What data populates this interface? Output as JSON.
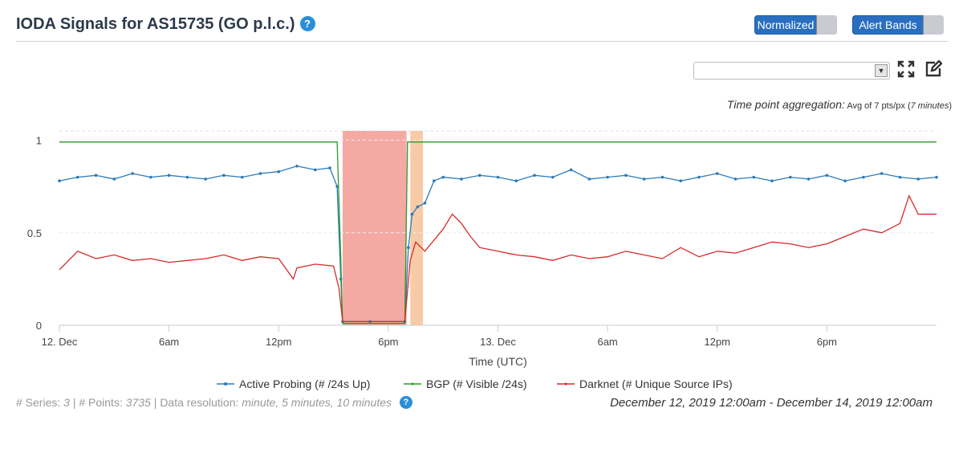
{
  "header": {
    "title": "IODA Signals for AS15735 (GO p.l.c.)",
    "help_icon": "?"
  },
  "controls": {
    "normalized_label": "Normalized",
    "alert_bands_label": "Alert Bands",
    "select_value": "",
    "aggregation_label": "Time point aggregation:",
    "aggregation_value": "Avg of 7 pts/px (",
    "aggregation_minutes": "7 minutes",
    "aggregation_close": ")"
  },
  "footer": {
    "series_label": "# Series:",
    "series_count": "3",
    "points_label": "# Points:",
    "points_count": "3735",
    "resolution_label": "Data resolution:",
    "resolution_value": "minute, 5 minutes, 10 minutes",
    "date_range": "December 12, 2019 12:00am - December 14, 2019 12:00am"
  },
  "chart_data": {
    "type": "line",
    "xlabel": "Time (UTC)",
    "ylabel": "",
    "x_range_hours": [
      0,
      48
    ],
    "ylim": [
      0,
      1.05
    ],
    "x_ticks": [
      {
        "h": 0,
        "label": "12. Dec"
      },
      {
        "h": 6,
        "label": "6am"
      },
      {
        "h": 12,
        "label": "12pm"
      },
      {
        "h": 18,
        "label": "6pm"
      },
      {
        "h": 24,
        "label": "13. Dec"
      },
      {
        "h": 30,
        "label": "6am"
      },
      {
        "h": 36,
        "label": "12pm"
      },
      {
        "h": 42,
        "label": "6pm"
      }
    ],
    "y_ticks": [
      {
        "v": 0,
        "label": "0"
      },
      {
        "v": 0.5,
        "label": "0.5"
      },
      {
        "v": 1,
        "label": "1"
      }
    ],
    "alert_bands": [
      {
        "start": 15.5,
        "end": 19.0,
        "color": "#f4aaa3"
      },
      {
        "start": 19.2,
        "end": 19.9,
        "color": "#f8cba8"
      }
    ],
    "series": [
      {
        "name": "Active Probing (# /24s Up)",
        "color": "#2b7bb9",
        "marker": true,
        "points": [
          [
            0,
            0.78
          ],
          [
            1,
            0.8
          ],
          [
            2,
            0.81
          ],
          [
            3,
            0.79
          ],
          [
            4,
            0.82
          ],
          [
            5,
            0.8
          ],
          [
            6,
            0.81
          ],
          [
            7,
            0.8
          ],
          [
            8,
            0.79
          ],
          [
            9,
            0.81
          ],
          [
            10,
            0.8
          ],
          [
            11,
            0.82
          ],
          [
            12,
            0.83
          ],
          [
            13,
            0.86
          ],
          [
            14,
            0.84
          ],
          [
            14.8,
            0.85
          ],
          [
            15.2,
            0.75
          ],
          [
            15.4,
            0.25
          ],
          [
            15.5,
            0.02
          ],
          [
            17,
            0.02
          ],
          [
            18.9,
            0.02
          ],
          [
            19.1,
            0.42
          ],
          [
            19.3,
            0.6
          ],
          [
            19.6,
            0.64
          ],
          [
            20,
            0.66
          ],
          [
            20.5,
            0.78
          ],
          [
            21,
            0.8
          ],
          [
            22,
            0.79
          ],
          [
            23,
            0.81
          ],
          [
            24,
            0.8
          ],
          [
            25,
            0.78
          ],
          [
            26,
            0.81
          ],
          [
            27,
            0.8
          ],
          [
            28,
            0.84
          ],
          [
            29,
            0.79
          ],
          [
            30,
            0.8
          ],
          [
            31,
            0.81
          ],
          [
            32,
            0.79
          ],
          [
            33,
            0.8
          ],
          [
            34,
            0.78
          ],
          [
            35,
            0.8
          ],
          [
            36,
            0.82
          ],
          [
            37,
            0.79
          ],
          [
            38,
            0.8
          ],
          [
            39,
            0.78
          ],
          [
            40,
            0.8
          ],
          [
            41,
            0.79
          ],
          [
            42,
            0.81
          ],
          [
            43,
            0.78
          ],
          [
            44,
            0.8
          ],
          [
            45,
            0.82
          ],
          [
            46,
            0.8
          ],
          [
            47,
            0.79
          ],
          [
            48,
            0.8
          ]
        ]
      },
      {
        "name": "BGP (# Visible /24s)",
        "color": "#2a9a2a",
        "marker": false,
        "points": [
          [
            0,
            0.99
          ],
          [
            15.2,
            0.99
          ],
          [
            15.4,
            0.35
          ],
          [
            15.5,
            0.01
          ],
          [
            18.9,
            0.01
          ],
          [
            19.05,
            0.99
          ],
          [
            48,
            0.99
          ]
        ]
      },
      {
        "name": "Darknet (# Unique Source IPs)",
        "color": "#d62a2a",
        "marker": false,
        "points": [
          [
            0,
            0.3
          ],
          [
            1,
            0.4
          ],
          [
            2,
            0.36
          ],
          [
            3,
            0.38
          ],
          [
            4,
            0.35
          ],
          [
            5,
            0.36
          ],
          [
            6,
            0.34
          ],
          [
            7,
            0.35
          ],
          [
            8,
            0.36
          ],
          [
            9,
            0.38
          ],
          [
            10,
            0.35
          ],
          [
            11,
            0.37
          ],
          [
            12,
            0.36
          ],
          [
            12.8,
            0.25
          ],
          [
            13,
            0.31
          ],
          [
            14,
            0.33
          ],
          [
            15,
            0.32
          ],
          [
            15.3,
            0.2
          ],
          [
            15.5,
            0.02
          ],
          [
            17,
            0.02
          ],
          [
            18.9,
            0.02
          ],
          [
            19.2,
            0.35
          ],
          [
            19.5,
            0.45
          ],
          [
            20,
            0.4
          ],
          [
            21,
            0.52
          ],
          [
            21.5,
            0.6
          ],
          [
            22,
            0.55
          ],
          [
            22.5,
            0.48
          ],
          [
            23,
            0.42
          ],
          [
            24,
            0.4
          ],
          [
            25,
            0.38
          ],
          [
            26,
            0.37
          ],
          [
            27,
            0.35
          ],
          [
            28,
            0.38
          ],
          [
            29,
            0.36
          ],
          [
            30,
            0.37
          ],
          [
            31,
            0.4
          ],
          [
            32,
            0.38
          ],
          [
            33,
            0.36
          ],
          [
            34,
            0.42
          ],
          [
            35,
            0.37
          ],
          [
            36,
            0.4
          ],
          [
            37,
            0.39
          ],
          [
            38,
            0.42
          ],
          [
            39,
            0.45
          ],
          [
            40,
            0.44
          ],
          [
            41,
            0.42
          ],
          [
            42,
            0.44
          ],
          [
            43,
            0.48
          ],
          [
            44,
            0.52
          ],
          [
            45,
            0.5
          ],
          [
            46,
            0.55
          ],
          [
            46.5,
            0.7
          ],
          [
            47,
            0.6
          ],
          [
            48,
            0.6
          ]
        ]
      }
    ]
  }
}
